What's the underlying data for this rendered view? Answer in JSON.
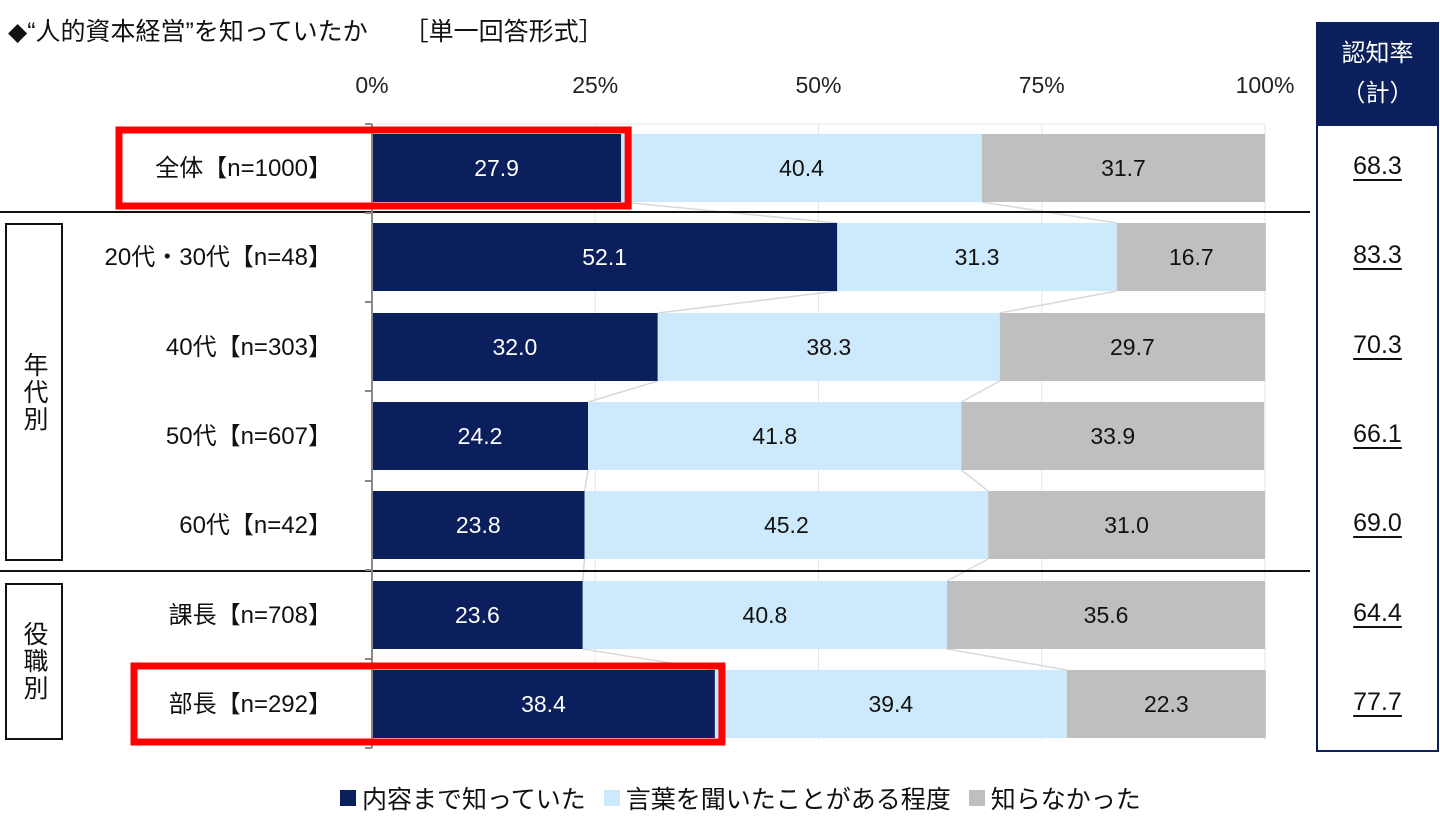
{
  "title": {
    "main": "◆“人的資本経営”を知っていたか",
    "format": "［単一回答形式］"
  },
  "rate_column": {
    "header_line1": "認知率",
    "header_line2": "（計）",
    "values": [
      "68.3",
      "83.3",
      "70.3",
      "66.1",
      "69.0",
      "64.4",
      "77.7"
    ]
  },
  "groups": [
    {
      "label": "年代別"
    },
    {
      "label": "役職別"
    }
  ],
  "colors": {
    "series": [
      "#0a1f5c",
      "#cdeafc",
      "#bfbfbf"
    ],
    "highlight": "#ff0000",
    "rate_header": "#0a1f5c"
  },
  "chart_data": {
    "type": "bar",
    "orientation": "horizontal",
    "stacked": true,
    "title": "◆“人的資本経営”を知っていたか",
    "xlabel": "",
    "ylabel": "",
    "xlim": [
      0,
      100
    ],
    "x_ticks": [
      "0%",
      "25%",
      "50%",
      "75%",
      "100%"
    ],
    "categories": [
      "全体【n=1000】",
      "20代・30代【n=48】",
      "40代【n=303】",
      "50代【n=607】",
      "60代【n=42】",
      "課長【n=708】",
      "部長【n=292】"
    ],
    "series": [
      {
        "name": "内容まで知っていた",
        "values": [
          27.9,
          52.1,
          32.0,
          24.2,
          23.8,
          23.6,
          38.4
        ],
        "labels": [
          "27.9",
          "52.1",
          "32.0",
          "24.2",
          "23.8",
          "23.6",
          "38.4"
        ]
      },
      {
        "name": "言葉を聞いたことがある程度",
        "values": [
          40.4,
          31.3,
          38.3,
          41.8,
          45.2,
          40.8,
          39.4
        ],
        "labels": [
          "40.4",
          "31.3",
          "38.3",
          "41.8",
          "45.2",
          "40.8",
          "39.4"
        ]
      },
      {
        "name": "知らなかった",
        "values": [
          31.7,
          16.7,
          29.7,
          33.9,
          31.0,
          35.6,
          22.3
        ],
        "labels": [
          "31.7",
          "16.7",
          "29.7",
          "33.9",
          "31.0",
          "35.6",
          "22.3"
        ]
      }
    ],
    "highlighted_rows": [
      0,
      6
    ],
    "legend_position": "bottom",
    "grid": true
  }
}
